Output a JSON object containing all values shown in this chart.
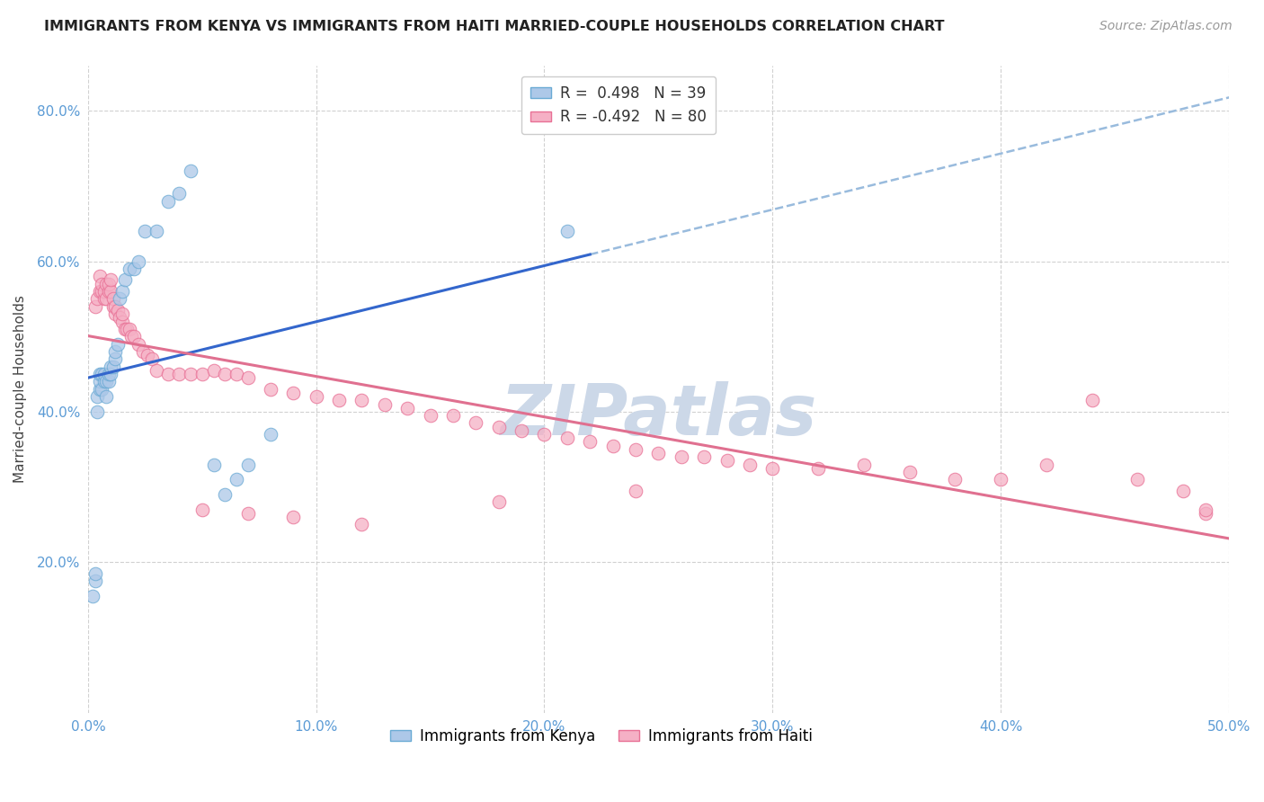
{
  "title": "IMMIGRANTS FROM KENYA VS IMMIGRANTS FROM HAITI MARRIED-COUPLE HOUSEHOLDS CORRELATION CHART",
  "source": "Source: ZipAtlas.com",
  "ylabel": "Married-couple Households",
  "xlim": [
    0.0,
    0.5
  ],
  "ylim": [
    0.0,
    0.86
  ],
  "xtick_labels": [
    "0.0%",
    "10.0%",
    "20.0%",
    "30.0%",
    "40.0%",
    "50.0%"
  ],
  "xtick_vals": [
    0.0,
    0.1,
    0.2,
    0.3,
    0.4,
    0.5
  ],
  "ytick_labels": [
    "20.0%",
    "40.0%",
    "60.0%",
    "80.0%"
  ],
  "ytick_vals": [
    0.2,
    0.4,
    0.6,
    0.8
  ],
  "kenya_color": "#adc8e8",
  "haiti_color": "#f5b0c5",
  "kenya_edge": "#6aaad4",
  "haiti_edge": "#e87095",
  "kenya_line_color": "#3366cc",
  "haiti_line_color": "#e07090",
  "kenya_dash_color": "#99bbdd",
  "R_kenya": 0.498,
  "N_kenya": 39,
  "R_haiti": -0.492,
  "N_haiti": 80,
  "kenya_x": [
    0.002,
    0.003,
    0.003,
    0.004,
    0.004,
    0.005,
    0.005,
    0.005,
    0.006,
    0.006,
    0.007,
    0.007,
    0.008,
    0.008,
    0.009,
    0.009,
    0.01,
    0.01,
    0.011,
    0.012,
    0.012,
    0.013,
    0.014,
    0.015,
    0.016,
    0.018,
    0.02,
    0.022,
    0.025,
    0.03,
    0.035,
    0.04,
    0.045,
    0.055,
    0.06,
    0.065,
    0.07,
    0.08,
    0.21
  ],
  "kenya_y": [
    0.155,
    0.175,
    0.185,
    0.4,
    0.42,
    0.43,
    0.44,
    0.45,
    0.43,
    0.45,
    0.44,
    0.45,
    0.42,
    0.44,
    0.44,
    0.45,
    0.45,
    0.46,
    0.46,
    0.47,
    0.48,
    0.49,
    0.55,
    0.56,
    0.575,
    0.59,
    0.59,
    0.6,
    0.64,
    0.64,
    0.68,
    0.69,
    0.72,
    0.33,
    0.29,
    0.31,
    0.33,
    0.37,
    0.64
  ],
  "haiti_x": [
    0.003,
    0.004,
    0.005,
    0.005,
    0.006,
    0.006,
    0.007,
    0.007,
    0.008,
    0.008,
    0.009,
    0.009,
    0.01,
    0.01,
    0.011,
    0.011,
    0.012,
    0.012,
    0.013,
    0.014,
    0.015,
    0.015,
    0.016,
    0.017,
    0.018,
    0.019,
    0.02,
    0.022,
    0.024,
    0.026,
    0.028,
    0.03,
    0.035,
    0.04,
    0.045,
    0.05,
    0.055,
    0.06,
    0.065,
    0.07,
    0.08,
    0.09,
    0.1,
    0.11,
    0.12,
    0.13,
    0.14,
    0.15,
    0.16,
    0.17,
    0.18,
    0.19,
    0.2,
    0.21,
    0.22,
    0.23,
    0.24,
    0.25,
    0.26,
    0.27,
    0.28,
    0.29,
    0.3,
    0.32,
    0.34,
    0.36,
    0.38,
    0.4,
    0.42,
    0.44,
    0.46,
    0.48,
    0.49,
    0.05,
    0.07,
    0.09,
    0.12,
    0.18,
    0.24,
    0.49
  ],
  "haiti_y": [
    0.54,
    0.55,
    0.56,
    0.58,
    0.56,
    0.57,
    0.55,
    0.56,
    0.55,
    0.57,
    0.56,
    0.57,
    0.56,
    0.575,
    0.54,
    0.55,
    0.53,
    0.54,
    0.535,
    0.525,
    0.52,
    0.53,
    0.51,
    0.51,
    0.51,
    0.5,
    0.5,
    0.49,
    0.48,
    0.475,
    0.47,
    0.455,
    0.45,
    0.45,
    0.45,
    0.45,
    0.455,
    0.45,
    0.45,
    0.445,
    0.43,
    0.425,
    0.42,
    0.415,
    0.415,
    0.41,
    0.405,
    0.395,
    0.395,
    0.385,
    0.38,
    0.375,
    0.37,
    0.365,
    0.36,
    0.355,
    0.35,
    0.345,
    0.34,
    0.34,
    0.335,
    0.33,
    0.325,
    0.325,
    0.33,
    0.32,
    0.31,
    0.31,
    0.33,
    0.415,
    0.31,
    0.295,
    0.265,
    0.27,
    0.265,
    0.26,
    0.25,
    0.28,
    0.295,
    0.27
  ],
  "watermark": "ZIPatlas",
  "watermark_color": "#ccd8e8",
  "background_color": "#ffffff",
  "grid_color": "#cccccc",
  "title_fontsize": 11.5,
  "source_fontsize": 10,
  "tick_fontsize": 11,
  "ylabel_fontsize": 11
}
